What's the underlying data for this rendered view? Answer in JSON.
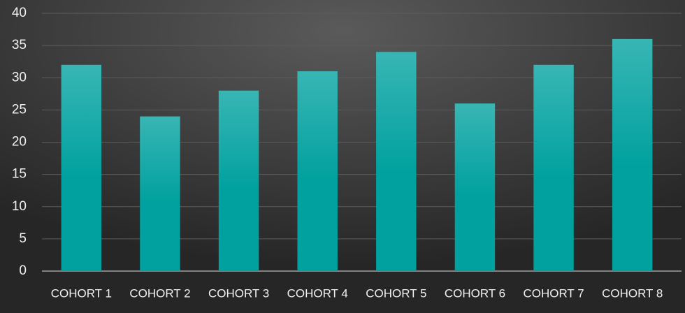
{
  "chart_data": {
    "type": "bar",
    "categories": [
      "COHORT 1",
      "COHORT 2",
      "COHORT 3",
      "COHORT 4",
      "COHORT 5",
      "COHORT 6",
      "COHORT 7",
      "COHORT 8"
    ],
    "values": [
      32,
      24,
      28,
      31,
      34,
      26,
      32,
      36
    ],
    "color": "#00a19f",
    "ylim": [
      0,
      40
    ],
    "yticks": [
      0,
      5,
      10,
      15,
      20,
      25,
      30,
      35,
      40
    ],
    "grid": true
  }
}
